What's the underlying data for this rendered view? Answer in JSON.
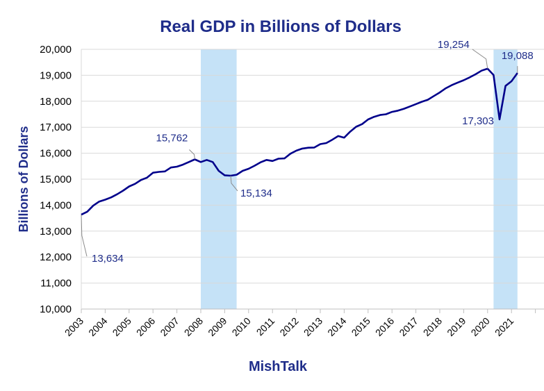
{
  "chart_data": {
    "type": "line",
    "title": "Real GDP in Billions of Dollars",
    "ylabel": "Billions of Dollars",
    "xlabel": "",
    "source": "MishTalk",
    "ylim": [
      10000,
      20000
    ],
    "xlim": [
      2003,
      2022
    ],
    "yticks": [
      "10,000",
      "11,000",
      "12,000",
      "13,000",
      "14,000",
      "15,000",
      "16,000",
      "17,000",
      "18,000",
      "19,000",
      "20,000"
    ],
    "xticks": [
      "2003",
      "2004",
      "2005",
      "2006",
      "2007",
      "2008",
      "2009",
      "2010",
      "2011",
      "2012",
      "2013",
      "2014",
      "2015",
      "2016",
      "2017",
      "2018",
      "2019",
      "2020",
      "2021"
    ],
    "grid": "horizontal",
    "recessions": [
      [
        2008.0,
        2009.5
      ],
      [
        2020.25,
        2021.25
      ]
    ],
    "series": [
      {
        "color": "#00008b",
        "points": [
          [
            2003.0,
            13634
          ],
          [
            2003.25,
            13750
          ],
          [
            2003.5,
            13980
          ],
          [
            2003.75,
            14140
          ],
          [
            2004.0,
            14210
          ],
          [
            2004.25,
            14300
          ],
          [
            2004.5,
            14420
          ],
          [
            2004.75,
            14560
          ],
          [
            2005.0,
            14720
          ],
          [
            2005.25,
            14820
          ],
          [
            2005.5,
            14970
          ],
          [
            2005.75,
            15060
          ],
          [
            2006.0,
            15250
          ],
          [
            2006.25,
            15280
          ],
          [
            2006.5,
            15300
          ],
          [
            2006.75,
            15450
          ],
          [
            2007.0,
            15480
          ],
          [
            2007.25,
            15560
          ],
          [
            2007.5,
            15660
          ],
          [
            2007.75,
            15762
          ],
          [
            2008.0,
            15660
          ],
          [
            2008.25,
            15740
          ],
          [
            2008.5,
            15660
          ],
          [
            2008.75,
            15320
          ],
          [
            2009.0,
            15150
          ],
          [
            2009.25,
            15134
          ],
          [
            2009.5,
            15170
          ],
          [
            2009.75,
            15320
          ],
          [
            2010.0,
            15400
          ],
          [
            2010.25,
            15520
          ],
          [
            2010.5,
            15650
          ],
          [
            2010.75,
            15740
          ],
          [
            2011.0,
            15700
          ],
          [
            2011.25,
            15790
          ],
          [
            2011.5,
            15800
          ],
          [
            2011.75,
            15980
          ],
          [
            2012.0,
            16100
          ],
          [
            2012.25,
            16180
          ],
          [
            2012.5,
            16210
          ],
          [
            2012.75,
            16220
          ],
          [
            2013.0,
            16350
          ],
          [
            2013.25,
            16390
          ],
          [
            2013.5,
            16520
          ],
          [
            2013.75,
            16660
          ],
          [
            2014.0,
            16600
          ],
          [
            2014.25,
            16830
          ],
          [
            2014.5,
            17020
          ],
          [
            2014.75,
            17120
          ],
          [
            2015.0,
            17300
          ],
          [
            2015.25,
            17400
          ],
          [
            2015.5,
            17470
          ],
          [
            2015.75,
            17500
          ],
          [
            2016.0,
            17590
          ],
          [
            2016.25,
            17640
          ],
          [
            2016.5,
            17710
          ],
          [
            2016.75,
            17800
          ],
          [
            2017.0,
            17890
          ],
          [
            2017.25,
            17980
          ],
          [
            2017.5,
            18060
          ],
          [
            2017.75,
            18200
          ],
          [
            2018.0,
            18340
          ],
          [
            2018.25,
            18500
          ],
          [
            2018.5,
            18620
          ],
          [
            2018.75,
            18720
          ],
          [
            2019.0,
            18810
          ],
          [
            2019.25,
            18920
          ],
          [
            2019.5,
            19040
          ],
          [
            2019.75,
            19180
          ],
          [
            2020.0,
            19254
          ],
          [
            2020.25,
            19010
          ],
          [
            2020.5,
            17303
          ],
          [
            2020.75,
            18590
          ],
          [
            2021.0,
            18770
          ],
          [
            2021.25,
            19088
          ]
        ]
      }
    ],
    "annotations": [
      {
        "text": "13,634",
        "x": 2003.0,
        "y": 13634,
        "placement": "below-right"
      },
      {
        "text": "15,762",
        "x": 2007.75,
        "y": 15762,
        "placement": "above-left"
      },
      {
        "text": "15,134",
        "x": 2009.25,
        "y": 15134,
        "placement": "below-right"
      },
      {
        "text": "19,254",
        "x": 2020.0,
        "y": 19254,
        "placement": "above-left"
      },
      {
        "text": "17,303",
        "x": 2020.5,
        "y": 17303,
        "placement": "left"
      },
      {
        "text": "19,088",
        "x": 2021.25,
        "y": 19088,
        "placement": "above"
      }
    ]
  }
}
